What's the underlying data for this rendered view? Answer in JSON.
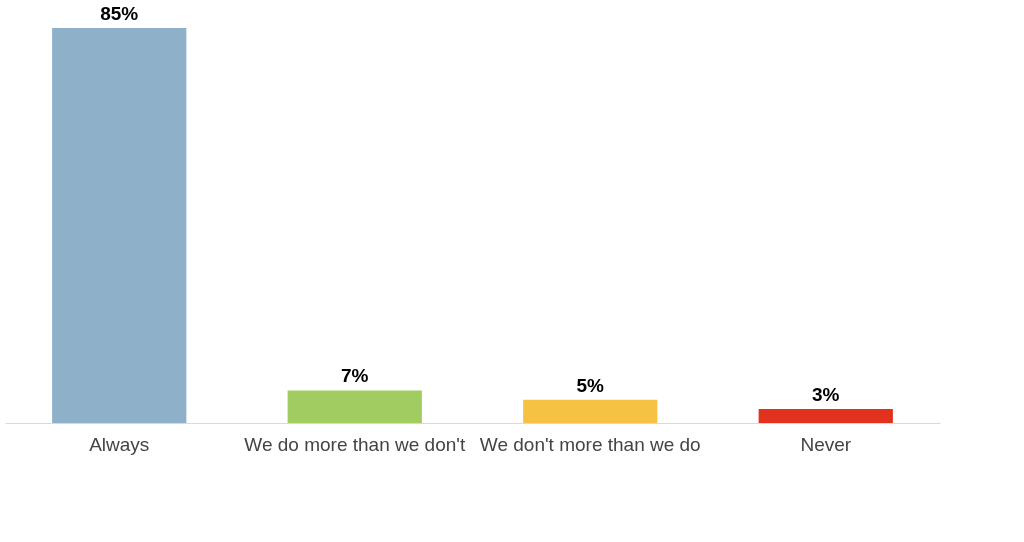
{
  "chart_data": {
    "type": "bar",
    "categories": [
      "Always",
      "We do more than we don't",
      "We don't more than we do",
      "Never"
    ],
    "values": [
      85,
      7,
      5,
      3
    ],
    "colors": [
      "#8eb0c9",
      "#a0cc62",
      "#f5c244",
      "#e2321f"
    ],
    "value_labels": [
      "85%",
      "7%",
      "5%",
      "3%"
    ],
    "grid": false
  }
}
